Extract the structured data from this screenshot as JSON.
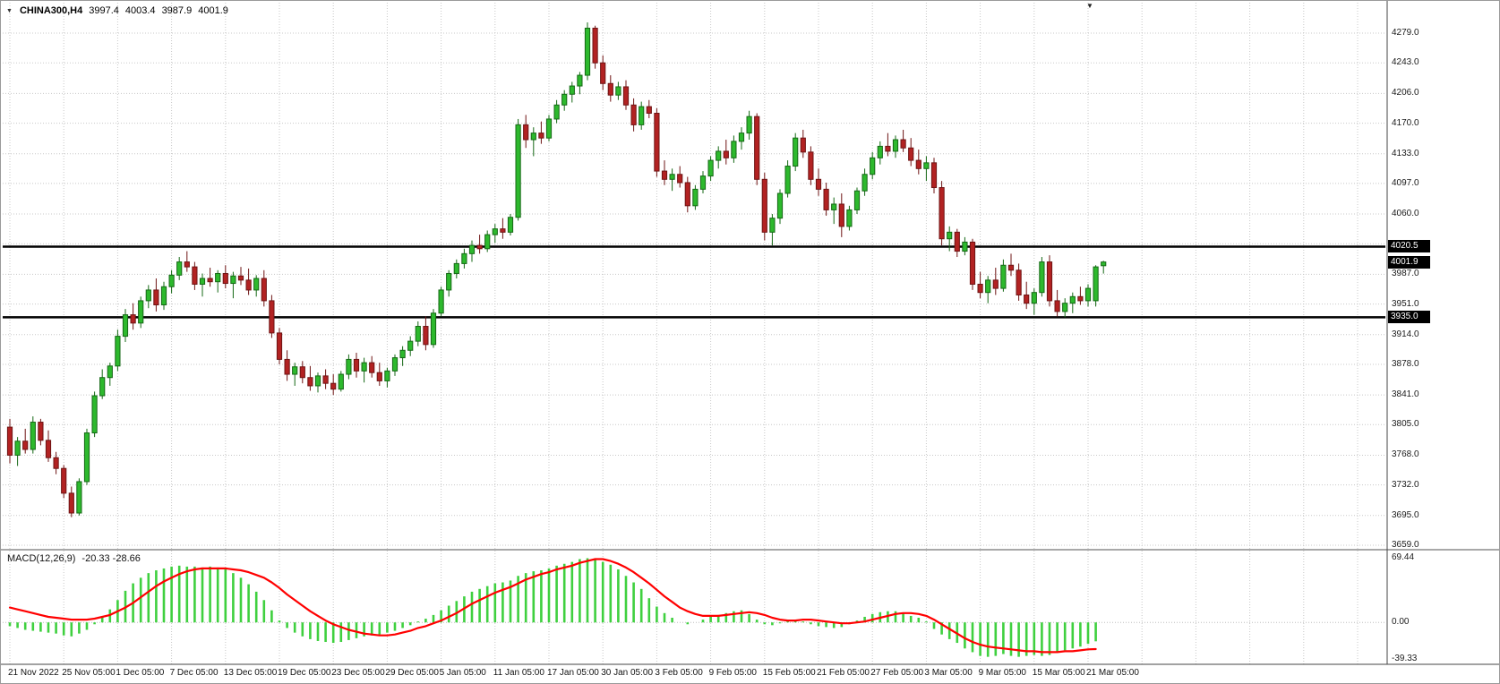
{
  "icons": {
    "dropdown": "▼",
    "shift_marker": "▼"
  },
  "header": {
    "symbol": "CHINA300,H4",
    "open": "3997.4",
    "high": "4003.4",
    "low": "3987.9",
    "close": "4001.9"
  },
  "macd_header": {
    "label": "MACD(12,26,9)",
    "values": "-20.33 -28.66"
  },
  "chart_data": {
    "type": "candlestick",
    "title": "CHINA300,H4",
    "symbol": "CHINA300",
    "timeframe": "H4",
    "grid": true,
    "ylim": [
      3655,
      4316
    ],
    "y_ticks": [
      "4279.0",
      "4243.0",
      "4206.0",
      "4170.0",
      "4133.0",
      "4097.0",
      "4060.0",
      "3987.0",
      "3951.0",
      "3914.0",
      "3878.0",
      "3841.0",
      "3805.0",
      "3768.0",
      "3732.0",
      "3695.0",
      "3659.0"
    ],
    "grid_prices": [
      4279,
      4243,
      4206,
      4170,
      4133,
      4097,
      4060,
      4024,
      3987,
      3951,
      3914,
      3878,
      3841,
      3805,
      3768,
      3732,
      3695,
      3659
    ],
    "price_badges": [
      {
        "name": "hline-upper",
        "value": "4020.5"
      },
      {
        "name": "current-price",
        "value": "4001.9"
      },
      {
        "name": "hline-lower",
        "value": "3935.0"
      }
    ],
    "hlines": [
      4020.5,
      3935.0
    ],
    "x_labels": [
      "21 Nov 2022",
      "25 Nov 05:00",
      "1 Dec 05:00",
      "7 Dec 05:00",
      "13 Dec 05:00",
      "19 Dec 05:00",
      "23 Dec 05:00",
      "29 Dec 05:00",
      "5 Jan 05:00",
      "11 Jan 05:00",
      "17 Jan 05:00",
      "30 Jan 05:00",
      "3 Feb 05:00",
      "9 Feb 05:00",
      "15 Feb 05:00",
      "21 Feb 05:00",
      "27 Feb 05:00",
      "3 Mar 05:00",
      "9 Mar 05:00",
      "15 Mar 05:00",
      "21 Mar 05:00"
    ],
    "candles_per_label": 7,
    "current_bar": {
      "open": 3997.4,
      "high": 4003.4,
      "low": 3987.9,
      "close": 4001.9
    },
    "ohlc": [
      [
        3802,
        3812,
        3758,
        3768
      ],
      [
        3768,
        3790,
        3755,
        3785
      ],
      [
        3785,
        3800,
        3770,
        3775
      ],
      [
        3775,
        3815,
        3770,
        3808
      ],
      [
        3808,
        3812,
        3780,
        3786
      ],
      [
        3786,
        3798,
        3760,
        3765
      ],
      [
        3765,
        3772,
        3745,
        3752
      ],
      [
        3752,
        3756,
        3716,
        3722
      ],
      [
        3722,
        3730,
        3693,
        3698
      ],
      [
        3698,
        3740,
        3695,
        3736
      ],
      [
        3736,
        3800,
        3732,
        3795
      ],
      [
        3795,
        3845,
        3790,
        3840
      ],
      [
        3840,
        3872,
        3836,
        3862
      ],
      [
        3862,
        3880,
        3852,
        3876
      ],
      [
        3876,
        3920,
        3870,
        3912
      ],
      [
        3912,
        3945,
        3905,
        3938
      ],
      [
        3938,
        3952,
        3920,
        3928
      ],
      [
        3928,
        3960,
        3922,
        3955
      ],
      [
        3955,
        3974,
        3946,
        3968
      ],
      [
        3968,
        3982,
        3942,
        3950
      ],
      [
        3950,
        3978,
        3944,
        3972
      ],
      [
        3972,
        3992,
        3964,
        3986
      ],
      [
        3986,
        4008,
        3980,
        4002
      ],
      [
        4002,
        4015,
        3990,
        3996
      ],
      [
        3996,
        4002,
        3968,
        3975
      ],
      [
        3975,
        3988,
        3960,
        3982
      ],
      [
        3982,
        3995,
        3972,
        3978
      ],
      [
        3978,
        3992,
        3965,
        3988
      ],
      [
        3988,
        3998,
        3970,
        3976
      ],
      [
        3976,
        3990,
        3958,
        3985
      ],
      [
        3985,
        3996,
        3974,
        3980
      ],
      [
        3980,
        3994,
        3962,
        3968
      ],
      [
        3968,
        3986,
        3960,
        3982
      ],
      [
        3982,
        3992,
        3948,
        3955
      ],
      [
        3955,
        3962,
        3910,
        3916
      ],
      [
        3916,
        3922,
        3878,
        3884
      ],
      [
        3884,
        3895,
        3858,
        3866
      ],
      [
        3866,
        3880,
        3852,
        3875
      ],
      [
        3875,
        3882,
        3855,
        3862
      ],
      [
        3862,
        3876,
        3846,
        3852
      ],
      [
        3852,
        3868,
        3844,
        3864
      ],
      [
        3864,
        3872,
        3848,
        3855
      ],
      [
        3855,
        3866,
        3841,
        3848
      ],
      [
        3848,
        3870,
        3845,
        3866
      ],
      [
        3866,
        3890,
        3860,
        3884
      ],
      [
        3884,
        3892,
        3862,
        3870
      ],
      [
        3870,
        3886,
        3856,
        3880
      ],
      [
        3880,
        3888,
        3862,
        3868
      ],
      [
        3868,
        3880,
        3852,
        3858
      ],
      [
        3858,
        3874,
        3850,
        3870
      ],
      [
        3870,
        3890,
        3864,
        3886
      ],
      [
        3886,
        3900,
        3876,
        3895
      ],
      [
        3895,
        3912,
        3888,
        3906
      ],
      [
        3906,
        3930,
        3900,
        3924
      ],
      [
        3924,
        3936,
        3895,
        3902
      ],
      [
        3902,
        3945,
        3898,
        3940
      ],
      [
        3940,
        3972,
        3936,
        3968
      ],
      [
        3968,
        3992,
        3960,
        3988
      ],
      [
        3988,
        4005,
        3982,
        4000
      ],
      [
        4000,
        4018,
        3994,
        4012
      ],
      [
        4012,
        4028,
        4002,
        4022
      ],
      [
        4022,
        4035,
        4012,
        4018
      ],
      [
        4018,
        4040,
        4014,
        4035
      ],
      [
        4035,
        4048,
        4025,
        4042
      ],
      [
        4042,
        4055,
        4030,
        4038
      ],
      [
        4038,
        4060,
        4034,
        4056
      ],
      [
        4056,
        4175,
        4052,
        4168
      ],
      [
        4168,
        4180,
        4140,
        4150
      ],
      [
        4150,
        4165,
        4130,
        4158
      ],
      [
        4158,
        4172,
        4145,
        4152
      ],
      [
        4152,
        4180,
        4148,
        4175
      ],
      [
        4175,
        4198,
        4170,
        4192
      ],
      [
        4192,
        4210,
        4185,
        4205
      ],
      [
        4205,
        4220,
        4195,
        4215
      ],
      [
        4215,
        4232,
        4205,
        4228
      ],
      [
        4228,
        4292,
        4222,
        4285
      ],
      [
        4285,
        4288,
        4236,
        4243
      ],
      [
        4243,
        4252,
        4210,
        4218
      ],
      [
        4218,
        4228,
        4196,
        4204
      ],
      [
        4204,
        4220,
        4198,
        4214
      ],
      [
        4214,
        4222,
        4186,
        4192
      ],
      [
        4192,
        4200,
        4160,
        4168
      ],
      [
        4168,
        4196,
        4162,
        4190
      ],
      [
        4190,
        4198,
        4176,
        4182
      ],
      [
        4182,
        4188,
        4105,
        4112
      ],
      [
        4112,
        4125,
        4095,
        4102
      ],
      [
        4102,
        4115,
        4088,
        4108
      ],
      [
        4108,
        4118,
        4092,
        4098
      ],
      [
        4098,
        4105,
        4062,
        4070
      ],
      [
        4070,
        4095,
        4065,
        4090
      ],
      [
        4090,
        4112,
        4085,
        4106
      ],
      [
        4106,
        4130,
        4100,
        4125
      ],
      [
        4125,
        4142,
        4115,
        4136
      ],
      [
        4136,
        4150,
        4120,
        4128
      ],
      [
        4128,
        4155,
        4122,
        4148
      ],
      [
        4148,
        4165,
        4138,
        4158
      ],
      [
        4158,
        4185,
        4150,
        4178
      ],
      [
        4178,
        4182,
        4095,
        4102
      ],
      [
        4102,
        4110,
        4028,
        4038
      ],
      [
        4038,
        4060,
        4022,
        4055
      ],
      [
        4055,
        4090,
        4048,
        4085
      ],
      [
        4085,
        4125,
        4080,
        4118
      ],
      [
        4118,
        4158,
        4112,
        4152
      ],
      [
        4152,
        4162,
        4128,
        4135
      ],
      [
        4135,
        4142,
        4095,
        4102
      ],
      [
        4102,
        4115,
        4082,
        4090
      ],
      [
        4090,
        4098,
        4058,
        4065
      ],
      [
        4065,
        4080,
        4048,
        4072
      ],
      [
        4072,
        4085,
        4032,
        4045
      ],
      [
        4045,
        4070,
        4040,
        4065
      ],
      [
        4065,
        4092,
        4060,
        4088
      ],
      [
        4088,
        4115,
        4082,
        4108
      ],
      [
        4108,
        4135,
        4102,
        4128
      ],
      [
        4128,
        4148,
        4120,
        4142
      ],
      [
        4142,
        4158,
        4130,
        4136
      ],
      [
        4136,
        4155,
        4128,
        4150
      ],
      [
        4150,
        4162,
        4135,
        4140
      ],
      [
        4140,
        4152,
        4118,
        4125
      ],
      [
        4125,
        4138,
        4108,
        4115
      ],
      [
        4115,
        4130,
        4100,
        4122
      ],
      [
        4122,
        4128,
        4085,
        4092
      ],
      [
        4092,
        4100,
        4022,
        4030
      ],
      [
        4030,
        4045,
        4015,
        4038
      ],
      [
        4038,
        4042,
        4008,
        4015
      ],
      [
        4015,
        4032,
        4010,
        4026
      ],
      [
        4026,
        4030,
        3968,
        3975
      ],
      [
        3975,
        3990,
        3958,
        3965
      ],
      [
        3965,
        3985,
        3952,
        3980
      ],
      [
        3980,
        3995,
        3962,
        3970
      ],
      [
        3970,
        4005,
        3966,
        3998
      ],
      [
        3998,
        4012,
        3985,
        3992
      ],
      [
        3992,
        4000,
        3955,
        3962
      ],
      [
        3962,
        3978,
        3945,
        3952
      ],
      [
        3952,
        3970,
        3938,
        3965
      ],
      [
        3965,
        4008,
        3960,
        4002
      ],
      [
        4002,
        4010,
        3948,
        3955
      ],
      [
        3955,
        3968,
        3936,
        3942
      ],
      [
        3942,
        3958,
        3935,
        3952
      ],
      [
        3952,
        3965,
        3940,
        3960
      ],
      [
        3960,
        3972,
        3950,
        3955
      ],
      [
        3955,
        3975,
        3948,
        3970
      ],
      [
        3955,
        3998,
        3948,
        3996
      ],
      [
        3997.4,
        4003.4,
        3987.9,
        4001.9
      ]
    ],
    "macd": {
      "label": "MACD(12,26,9)",
      "values": [
        -20.33,
        -28.66
      ],
      "y_ticks": [
        "69.44",
        "0.00",
        "-39.33"
      ],
      "ylim": [
        -45,
        77
      ],
      "histogram": [
        -4,
        -6,
        -8,
        -9,
        -10,
        -11,
        -12,
        -14,
        -15,
        -12,
        -8,
        -2,
        6,
        14,
        24,
        34,
        42,
        48,
        53,
        56,
        58,
        60,
        61,
        60,
        60,
        59,
        60,
        59,
        57,
        53,
        48,
        41,
        33,
        24,
        13,
        2,
        -6,
        -11,
        -15,
        -18,
        -20,
        -21,
        -22,
        -21,
        -19,
        -17,
        -15,
        -14,
        -13,
        -11,
        -9,
        -6,
        -3,
        1,
        4,
        8,
        13,
        18,
        23,
        28,
        33,
        36,
        39,
        42,
        43,
        45,
        50,
        53,
        55,
        56,
        58,
        61,
        63,
        65,
        68,
        69,
        68,
        65,
        62,
        57,
        50,
        43,
        36,
        26,
        17,
        10,
        5,
        0,
        -2,
        0,
        3,
        6,
        8,
        10,
        12,
        13,
        9,
        3,
        -2,
        -3,
        -1,
        2,
        3,
        1,
        -2,
        -4,
        -5,
        -6,
        -5,
        -2,
        2,
        6,
        9,
        11,
        12,
        12,
        10,
        7,
        5,
        1,
        -7,
        -13,
        -18,
        -22,
        -28,
        -32,
        -36,
        -37,
        -36,
        -34,
        -36,
        -37,
        -36,
        -35,
        -36,
        -35,
        -32,
        -30,
        -28,
        -26,
        -23,
        -20.33
      ],
      "signal": [
        16,
        14,
        12,
        10,
        8,
        6,
        5,
        4,
        3,
        3,
        3,
        4,
        6,
        8,
        12,
        16,
        21,
        27,
        33,
        39,
        44,
        48,
        52,
        55,
        57,
        58,
        58,
        58,
        58,
        57,
        56,
        54,
        51,
        48,
        43,
        37,
        30,
        24,
        18,
        12,
        7,
        2,
        -2,
        -5,
        -8,
        -10,
        -12,
        -13,
        -14,
        -14,
        -13,
        -11,
        -9,
        -6,
        -4,
        -1,
        2,
        6,
        10,
        15,
        20,
        24,
        28,
        32,
        35,
        38,
        42,
        46,
        49,
        52,
        54,
        57,
        59,
        61,
        64,
        66,
        68,
        68,
        66,
        63,
        59,
        54,
        48,
        42,
        35,
        28,
        22,
        16,
        12,
        9,
        7,
        7,
        7,
        8,
        9,
        10,
        11,
        10,
        8,
        5,
        3,
        2,
        2,
        3,
        3,
        2,
        1,
        0,
        -1,
        -1,
        0,
        1,
        3,
        5,
        7,
        9,
        10,
        10,
        9,
        7,
        3,
        -2,
        -7,
        -12,
        -17,
        -21,
        -24,
        -26,
        -27,
        -28,
        -29,
        -30,
        -31,
        -31,
        -32,
        -32,
        -32,
        -31,
        -31,
        -30,
        -29,
        -28.66
      ]
    },
    "colors": {
      "bull": "#2db92d",
      "bull_border": "#156815",
      "bear": "#b22222",
      "bear_border": "#6e1414",
      "macd_hist": "#3fd03f",
      "macd_signal": "#ff0000",
      "grid": "#c8c8c8",
      "hline": "#000000",
      "badge_bg": "#000000",
      "badge_fg": "#ffffff"
    }
  }
}
